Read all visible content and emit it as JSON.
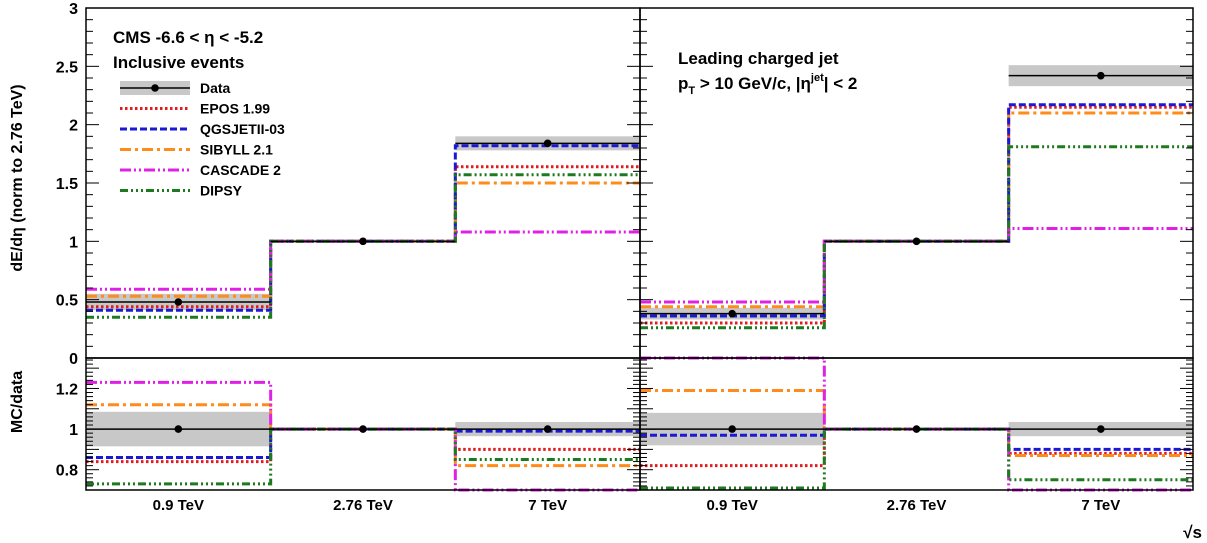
{
  "chart_data": {
    "type": "line",
    "categories": [
      "0.9 TeV",
      "2.76 TeV",
      "7 TeV"
    ],
    "xlabel": "√s",
    "top_ylabel": "dE/dη (norm to 2.76 TeV)",
    "bottom_ylabel": "MC/data",
    "top_ylim": [
      0,
      3
    ],
    "bottom_ylim": [
      0.7,
      1.35
    ],
    "top_yticks": [
      "0",
      "0.5",
      "1",
      "1.5",
      "2",
      "2.5",
      "3"
    ],
    "bottom_yticks": [
      "0.8",
      "1",
      "1.2"
    ],
    "colors": {
      "data": "#000000",
      "data_band": "#c8c8c8",
      "epos": "#e41a1c",
      "qgsjet": "#1a1ad4",
      "sibyll": "#ff8c1a",
      "cascade": "#e020e6",
      "dipsy": "#1e7a1e"
    },
    "legend": [
      {
        "key": "data",
        "label": "Data"
      },
      {
        "key": "epos",
        "label": "EPOS 1.99"
      },
      {
        "key": "qgsjet",
        "label": "QGSJETII-03"
      },
      {
        "key": "sibyll",
        "label": "SIBYLL 2.1"
      },
      {
        "key": "cascade",
        "label": "CASCADE 2"
      },
      {
        "key": "dipsy",
        "label": "DIPSY"
      }
    ],
    "panels": [
      {
        "text_lines": [
          "CMS    -6.6 < η < -5.2",
          "Inclusive events"
        ],
        "data": [
          0.48,
          1.0,
          1.84
        ],
        "data_band": [
          0.07,
          0.01,
          0.06
        ],
        "series": {
          "epos": [
            0.44,
            1.0,
            1.64
          ],
          "qgsjet": [
            0.41,
            1.0,
            1.82
          ],
          "sibyll": [
            0.53,
            1.0,
            1.5
          ],
          "cascade": [
            0.59,
            1.0,
            1.08
          ],
          "dipsy": [
            0.35,
            1.0,
            1.57
          ]
        },
        "ratio_band": [
          0.085,
          0.008,
          0.035
        ],
        "ratio": {
          "epos": [
            0.84,
            1.0,
            0.9
          ],
          "qgsjet": [
            0.86,
            1.0,
            0.99
          ],
          "sibyll": [
            1.12,
            1.0,
            0.82
          ],
          "cascade": [
            1.23,
            1.0,
            0.7
          ],
          "dipsy": [
            0.73,
            1.0,
            0.85
          ]
        }
      },
      {
        "text_lines": [
          "Leading charged jet",
          "p_T > 10 GeV/c, |η^jet| < 2"
        ],
        "data": [
          0.38,
          1.0,
          2.42
        ],
        "data_band": [
          0.05,
          0.01,
          0.09
        ],
        "series": {
          "epos": [
            0.3,
            1.0,
            2.15
          ],
          "qgsjet": [
            0.36,
            1.0,
            2.17
          ],
          "sibyll": [
            0.44,
            1.0,
            2.1
          ],
          "cascade": [
            0.48,
            1.0,
            1.11
          ],
          "dipsy": [
            0.26,
            1.0,
            1.81
          ]
        },
        "ratio_band": [
          0.08,
          0.008,
          0.035
        ],
        "ratio": {
          "epos": [
            0.82,
            1.0,
            0.88
          ],
          "qgsjet": [
            0.97,
            1.0,
            0.9
          ],
          "sibyll": [
            1.19,
            1.0,
            0.87
          ],
          "cascade": [
            1.35,
            1.0,
            0.7
          ],
          "dipsy": [
            0.71,
            1.0,
            0.75
          ]
        }
      }
    ]
  }
}
